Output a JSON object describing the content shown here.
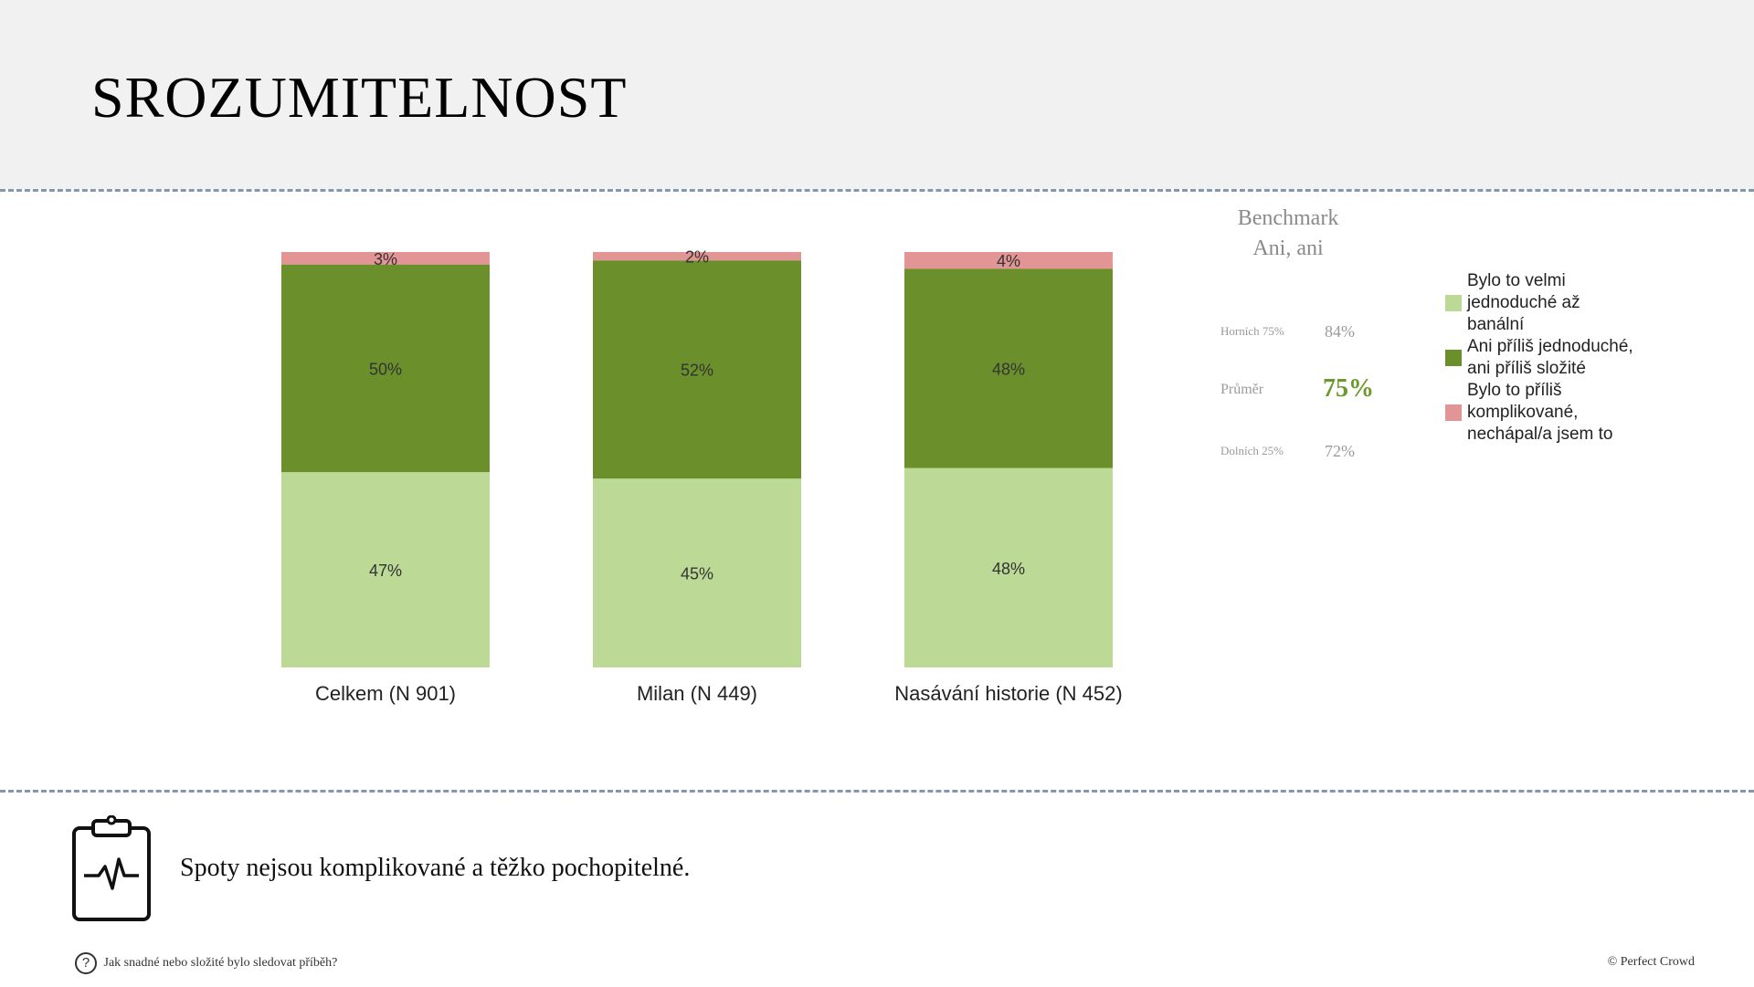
{
  "header": {
    "title": "SROZUMITELNOST"
  },
  "chart_data": {
    "type": "bar",
    "stacked": true,
    "categories": [
      "Celkem (N 901)",
      "Milan (N 449)",
      "Nasávání historie (N 452)"
    ],
    "series": [
      {
        "name": "Bylo to velmi jednoduché až banální",
        "values": [
          47,
          45,
          48
        ],
        "labels": [
          "47%",
          "45%",
          "48%"
        ],
        "color": "#bcd996"
      },
      {
        "name": "Ani příliš jednoduché, ani příliš složité",
        "values": [
          50,
          52,
          48
        ],
        "labels": [
          "50%",
          "52%",
          "48%"
        ],
        "color": "#6b8f2a"
      },
      {
        "name": "Bylo to příliš komplikované, nechápal/a jsem to",
        "values": [
          3,
          2,
          4
        ],
        "labels": [
          "3%",
          "2%",
          "4%"
        ],
        "color": "#e39595"
      }
    ],
    "ylim": [
      0,
      100
    ],
    "legend_position": "right"
  },
  "legend": {
    "items": [
      {
        "lines": [
          "Bylo to velmi",
          "jednoduché až",
          "banální"
        ],
        "color": "#bcd996"
      },
      {
        "lines": [
          "Ani příliš jednoduché,",
          "ani příliš složité"
        ],
        "color": "#6b8f2a"
      },
      {
        "lines": [
          "Bylo to příliš",
          "komplikované,",
          "nechápal/a jsem to"
        ],
        "color": "#e39595"
      }
    ]
  },
  "benchmark": {
    "title_line1": "Benchmark",
    "title_line2": "Ani, ani",
    "top_label": "Horních 75%",
    "top_value": "84%",
    "avg_label": "Průměr",
    "avg_value": "75%",
    "bottom_label": "Dolních 25%",
    "bottom_value": "72%"
  },
  "note": {
    "text": "Spoty nejsou komplikované a těžko pochopitelné.",
    "icon": "clipboard-pulse-icon"
  },
  "footer": {
    "question": "Jak snadné nebo složité bylo sledovat příběh?",
    "question_icon": "question-circle-icon",
    "copyright": "© Perfect Crowd"
  }
}
